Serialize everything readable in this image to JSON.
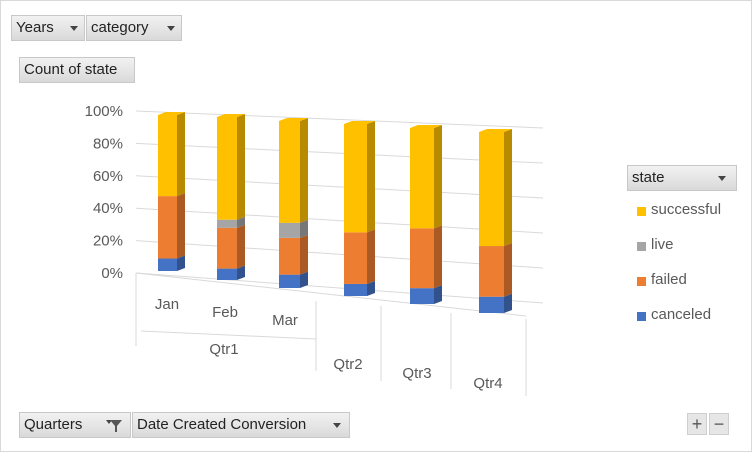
{
  "filters": {
    "years": "Years",
    "category": "category",
    "values_field": "Count of state",
    "quarters": "Quarters",
    "date_created": "Date Created Conversion"
  },
  "legend": {
    "title": "state",
    "items": [
      {
        "label": "successful",
        "color": "#ffc000"
      },
      {
        "label": "live",
        "color": "#a5a5a5"
      },
      {
        "label": "failed",
        "color": "#ed7d31"
      },
      {
        "label": "canceled",
        "color": "#4472c4"
      }
    ]
  },
  "controls": {
    "plus": "+",
    "minus": "−"
  },
  "chart_data": {
    "type": "bar",
    "stacked": "percent",
    "view": "3d",
    "categories": [
      "Jan",
      "Feb",
      "Mar",
      "Qtr2",
      "Qtr3",
      "Qtr4"
    ],
    "category_groups": [
      {
        "label": "Qtr1",
        "members": [
          "Jan",
          "Feb",
          "Mar"
        ]
      },
      {
        "label": "Qtr2",
        "members": [
          "Qtr2"
        ]
      },
      {
        "label": "Qtr3",
        "members": [
          "Qtr3"
        ]
      },
      {
        "label": "Qtr4",
        "members": [
          "Qtr4"
        ]
      }
    ],
    "series": [
      {
        "name": "canceled",
        "values": [
          8,
          7,
          8,
          7,
          9,
          9
        ]
      },
      {
        "name": "failed",
        "values": [
          40,
          25,
          22,
          30,
          34,
          28
        ]
      },
      {
        "name": "live",
        "values": [
          0,
          5,
          9,
          0,
          0,
          0
        ]
      },
      {
        "name": "successful",
        "values": [
          52,
          63,
          61,
          63,
          57,
          63
        ]
      }
    ],
    "yticks": [
      "0%",
      "20%",
      "40%",
      "60%",
      "80%",
      "100%"
    ],
    "ylim": [
      0,
      100
    ],
    "grid": true,
    "legend_position": "right"
  }
}
